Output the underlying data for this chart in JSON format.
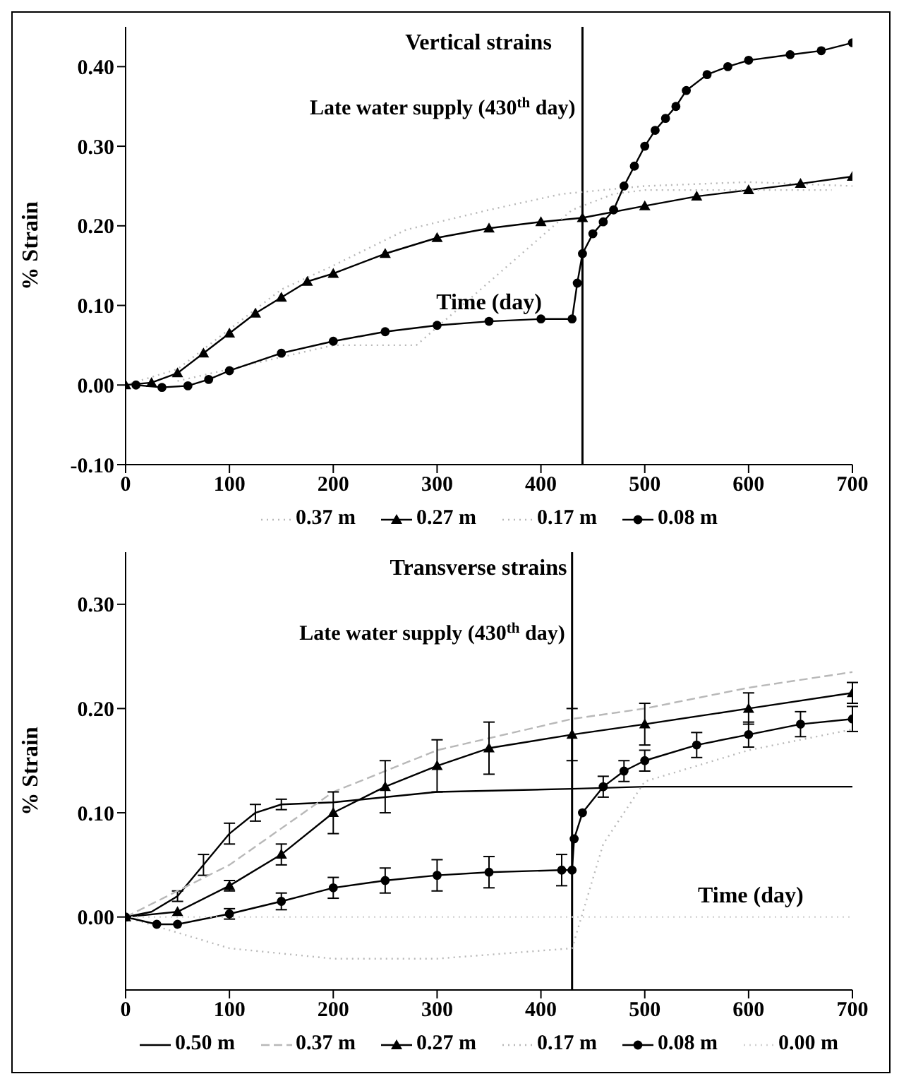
{
  "chart_data": [
    {
      "type": "line",
      "title": "Vertical strains",
      "xlabel": "Time (day)",
      "ylabel": "% Strain",
      "xlim": [
        0,
        700
      ],
      "xticks": [
        0,
        100,
        200,
        300,
        400,
        500,
        600,
        700
      ],
      "ylim": [
        -0.1,
        0.45
      ],
      "yticks": [
        {
          "value": -0.1,
          "label": "-0.10"
        },
        {
          "value": 0,
          "label": "0.00"
        },
        {
          "value": 0.1,
          "label": "0.10"
        },
        {
          "value": 0.2,
          "label": "0.20"
        },
        {
          "value": 0.3,
          "label": "0.30"
        },
        {
          "value": 0.4,
          "label": "0.40"
        }
      ],
      "legend": "bottom",
      "ref_lines": [
        {
          "axis": "x",
          "value": 440,
          "label": "Late water supply (430$^{th}$ day)",
          "color": "#000000"
        }
      ],
      "series": [
        {
          "name": "0.37 m",
          "color": "#b8b8b8",
          "marker": "none",
          "line_style": "dotted",
          "x": [
            0,
            50,
            100,
            150,
            200,
            270,
            350,
            420,
            500,
            600,
            700
          ],
          "values": [
            0,
            0.02,
            0.07,
            0.12,
            0.15,
            0.195,
            0.22,
            0.24,
            0.25,
            0.255,
            0.25
          ]
        },
        {
          "name": "0.27 m",
          "color": "#000000",
          "marker": "triangle",
          "line_style": "solid",
          "x": [
            0,
            25,
            50,
            75,
            100,
            125,
            150,
            175,
            200,
            250,
            300,
            350,
            400,
            440,
            500,
            550,
            600,
            650,
            700
          ],
          "values": [
            0,
            0.003,
            0.015,
            0.04,
            0.065,
            0.09,
            0.11,
            0.13,
            0.14,
            0.165,
            0.185,
            0.197,
            0.205,
            0.21,
            0.225,
            0.237,
            0.245,
            0.253,
            0.262
          ]
        },
        {
          "name": "0.17 m",
          "color": "#b8b8b8",
          "marker": "none",
          "line_style": "dotted",
          "x": [
            50,
            100,
            200,
            280,
            430,
            470,
            500,
            600,
            680
          ],
          "values": [
            0.005,
            0.02,
            0.05,
            0.05,
            0.22,
            0.24,
            0.245,
            0.245,
            0.245
          ]
        },
        {
          "name": "0.08 m",
          "color": "#000000",
          "marker": "circle",
          "line_style": "solid",
          "x": [
            10,
            35,
            60,
            80,
            100,
            150,
            200,
            250,
            300,
            350,
            400,
            430,
            435,
            440,
            450,
            460,
            470,
            480,
            490,
            500,
            510,
            520,
            530,
            540,
            560,
            580,
            600,
            640,
            670,
            700
          ],
          "values": [
            0,
            -0.003,
            -0.001,
            0.007,
            0.018,
            0.04,
            0.055,
            0.067,
            0.075,
            0.08,
            0.083,
            0.083,
            0.128,
            0.165,
            0.19,
            0.205,
            0.22,
            0.25,
            0.275,
            0.3,
            0.32,
            0.335,
            0.35,
            0.37,
            0.39,
            0.4,
            0.408,
            0.415,
            0.42,
            0.43
          ]
        }
      ]
    },
    {
      "type": "line",
      "title": "Transverse strains",
      "xlabel": "Time (day)",
      "ylabel": "% Strain",
      "xlim": [
        0,
        700
      ],
      "xticks": [
        0,
        100,
        200,
        300,
        400,
        500,
        600,
        700
      ],
      "ylim": [
        -0.07,
        0.35
      ],
      "yticks": [
        {
          "value": 0,
          "label": "0.00"
        },
        {
          "value": 0.1,
          "label": "0.10"
        },
        {
          "value": 0.2,
          "label": "0.20"
        },
        {
          "value": 0.3,
          "label": "0.30"
        }
      ],
      "legend": "bottom",
      "ref_lines": [
        {
          "axis": "x",
          "value": 430,
          "label": "Late water supply (430$^{th}$ day)",
          "color": "#000000"
        }
      ],
      "series": [
        {
          "name": "0.50 m",
          "color": "#000000",
          "marker": "none",
          "line_style": "solid",
          "x": [
            0,
            25,
            50,
            75,
            100,
            125,
            150,
            200,
            300,
            430,
            500,
            700
          ],
          "values": [
            0,
            0.005,
            0.02,
            0.05,
            0.08,
            0.1,
            0.108,
            0.11,
            0.12,
            0.123,
            0.125,
            0.125
          ],
          "errors": [
            null,
            null,
            0.005,
            0.01,
            0.01,
            0.008,
            0.005,
            null,
            null,
            null,
            null,
            null
          ]
        },
        {
          "name": "0.37 m",
          "color": "#b8b8b8",
          "marker": "none",
          "line_style": "dashed",
          "x": [
            0,
            100,
            200,
            300,
            430,
            500,
            600,
            700
          ],
          "values": [
            0,
            0.05,
            0.12,
            0.16,
            0.19,
            0.2,
            0.22,
            0.235
          ]
        },
        {
          "name": "0.27 m",
          "color": "#000000",
          "marker": "triangle",
          "line_style": "solid",
          "x": [
            0,
            50,
            100,
            150,
            200,
            250,
            300,
            350,
            430,
            500,
            600,
            700
          ],
          "values": [
            0,
            0.005,
            0.03,
            0.06,
            0.1,
            0.125,
            0.145,
            0.162,
            0.175,
            0.185,
            0.2,
            0.215
          ],
          "errors": [
            null,
            null,
            0.005,
            0.01,
            0.02,
            0.025,
            0.025,
            0.025,
            0.025,
            0.02,
            0.015,
            0.01
          ]
        },
        {
          "name": "0.17 m",
          "color": "#b8b8b8",
          "marker": "none",
          "line_style": "dotted",
          "x": [
            0,
            100,
            200,
            300,
            430,
            460,
            500,
            600,
            700
          ],
          "values": [
            0,
            -0.03,
            -0.04,
            -0.04,
            -0.03,
            0.07,
            0.13,
            0.16,
            0.18
          ]
        },
        {
          "name": "0.08 m",
          "color": "#000000",
          "marker": "circle",
          "line_style": "solid",
          "x": [
            0,
            30,
            50,
            100,
            150,
            200,
            250,
            300,
            350,
            420,
            430,
            432,
            440,
            460,
            480,
            500,
            550,
            600,
            650,
            700
          ],
          "values": [
            0,
            -0.007,
            -0.007,
            0.003,
            0.015,
            0.028,
            0.035,
            0.04,
            0.043,
            0.045,
            0.045,
            0.075,
            0.1,
            0.125,
            0.14,
            0.15,
            0.165,
            0.175,
            0.185,
            0.19
          ],
          "errors": [
            null,
            null,
            null,
            0.005,
            0.008,
            0.01,
            0.012,
            0.015,
            0.015,
            0.015,
            null,
            null,
            null,
            0.01,
            0.01,
            0.01,
            0.012,
            0.012,
            0.012,
            0.012
          ]
        },
        {
          "name": "0.00 m",
          "color": "#d0d0d0",
          "marker": "none",
          "line_style": "dotted",
          "x": [
            0,
            700
          ],
          "values": [
            0,
            0
          ]
        }
      ]
    }
  ]
}
